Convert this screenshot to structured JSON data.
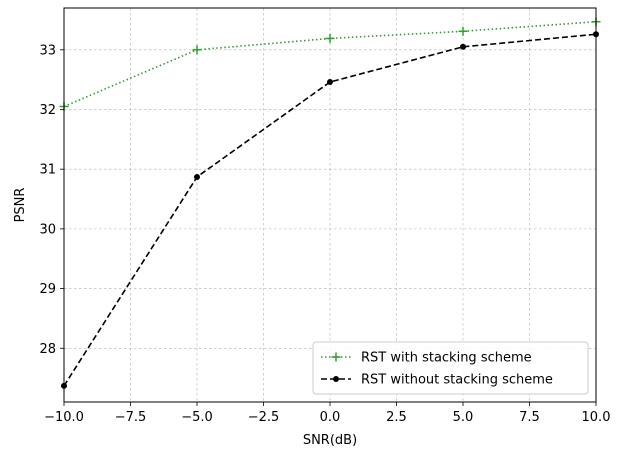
{
  "chart_data": {
    "type": "line",
    "title": "",
    "xlabel": "SNR(dB)",
    "ylabel": "PSNR",
    "xlim": [
      -10,
      10
    ],
    "ylim": [
      27.1,
      33.7
    ],
    "xticks": [
      -10,
      -7.5,
      -5,
      -2.5,
      0,
      2.5,
      5,
      7.5,
      10
    ],
    "xtick_labels": [
      "−10.0",
      "−7.5",
      "−5.0",
      "−2.5",
      "0.0",
      "2.5",
      "5.0",
      "7.5",
      "10.0"
    ],
    "yticks": [
      28,
      29,
      30,
      31,
      32,
      33
    ],
    "ytick_labels": [
      "28",
      "29",
      "30",
      "31",
      "32",
      "33"
    ],
    "grid": true,
    "legend_position": "lower-right",
    "series": [
      {
        "name": "RST with stacking scheme",
        "x": [
          -10,
          -5,
          0,
          5,
          10
        ],
        "y": [
          32.05,
          33.0,
          33.19,
          33.31,
          33.47
        ],
        "color": "#2ca02c",
        "line_style": "dotted",
        "marker": "plus"
      },
      {
        "name": "RST without stacking scheme",
        "x": [
          -10,
          -5,
          0,
          5,
          10
        ],
        "y": [
          27.37,
          30.87,
          32.46,
          33.05,
          33.26
        ],
        "color": "#000000",
        "line_style": "dashed",
        "marker": "dot"
      }
    ]
  }
}
